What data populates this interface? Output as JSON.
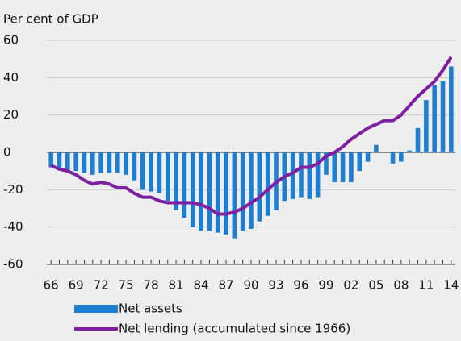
{
  "chart_data": {
    "type": "bar-line",
    "y_label": "Per cent of GDP",
    "categories": [
      "66",
      null,
      null,
      "69",
      null,
      null,
      "72",
      null,
      null,
      "75",
      null,
      null,
      "78",
      null,
      null,
      "81",
      null,
      null,
      "84",
      null,
      null,
      "87",
      null,
      null,
      "90",
      null,
      null,
      "93",
      null,
      null,
      "96",
      null,
      null,
      "99",
      null,
      null,
      "02",
      null,
      null,
      "05",
      null,
      null,
      "08",
      null,
      null,
      "11",
      null,
      null,
      "14"
    ],
    "series": [
      {
        "name": "Net assets",
        "type": "bar",
        "color": "#1e7fd0",
        "values": [
          -8,
          -9,
          -10,
          -10,
          -11,
          -12,
          -11,
          -11,
          -11,
          -12,
          -15,
          -20,
          -21,
          -22,
          -26,
          -31,
          -35,
          -40,
          -42,
          -42,
          -43,
          -44,
          -46,
          -42,
          -41,
          -37,
          -34,
          -31,
          -26,
          -25,
          -24,
          -25,
          -24,
          -12,
          -16,
          -16,
          -16,
          -10,
          -5,
          4,
          0,
          -6,
          -5,
          1,
          13,
          28,
          36,
          38,
          46
        ]
      },
      {
        "name": "Net lending (accumulated since 1966)",
        "type": "line",
        "color": "#7d1fa0",
        "values": [
          -7,
          -9,
          -10,
          -12,
          -15,
          -17,
          -16,
          -17,
          -19,
          -19,
          -22,
          -24,
          -24,
          -26,
          -27,
          -27,
          -27,
          -27,
          -28,
          -30,
          -33,
          -33,
          -32,
          -30,
          -27,
          -24,
          -20,
          -16,
          -13,
          -11,
          -8,
          -8,
          -6,
          -2,
          0,
          3,
          7,
          10,
          13,
          15,
          17,
          17,
          20,
          25,
          30,
          34,
          38,
          44,
          51
        ]
      }
    ],
    "ylim": [
      -60,
      60
    ],
    "yticks": [
      -60,
      -40,
      -20,
      0,
      20,
      40,
      60
    ],
    "grid": true
  }
}
